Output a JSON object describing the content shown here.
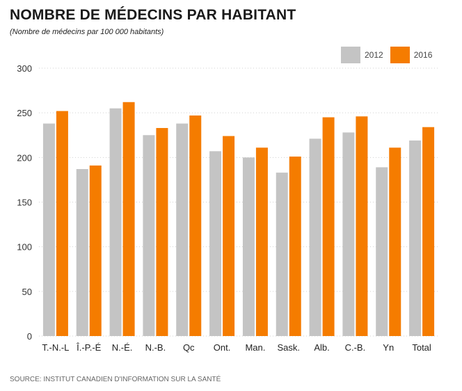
{
  "header": {
    "title": "NOMBRE DE MÉDECINS PAR HABITANT",
    "subtitle": "(Nombre de médecins par 100 000 habitants)"
  },
  "source": "SOURCE: INSTITUT CANADIEN D'INFORMATION SUR LA SANTÉ",
  "colors": {
    "s2012": "#c4c4c4",
    "s2016": "#f57c00",
    "grid": "#d0d0d0"
  },
  "chart_data": {
    "type": "bar",
    "title": "NOMBRE DE MÉDECINS PAR HABITANT",
    "subtitle": "(Nombre de médecins par 100 000 habitants)",
    "xlabel": "",
    "ylabel": "",
    "ylim": [
      0,
      300
    ],
    "yticks": [
      0,
      50,
      100,
      150,
      200,
      250,
      300
    ],
    "grid": true,
    "legend_position": "top-right",
    "categories": [
      "T.-N.-L",
      "Î.-P.-É",
      "N.-É.",
      "N.-B.",
      "Qc",
      "Ont.",
      "Man.",
      "Sask.",
      "Alb.",
      "C.-B.",
      "Yn",
      "Total"
    ],
    "series": [
      {
        "name": "2012",
        "color": "#c4c4c4",
        "values": [
          238,
          187,
          255,
          225,
          238,
          207,
          200,
          183,
          221,
          228,
          189,
          219
        ]
      },
      {
        "name": "2016",
        "color": "#f57c00",
        "values": [
          252,
          191,
          262,
          233,
          247,
          224,
          211,
          201,
          245,
          246,
          211,
          234
        ]
      }
    ]
  }
}
